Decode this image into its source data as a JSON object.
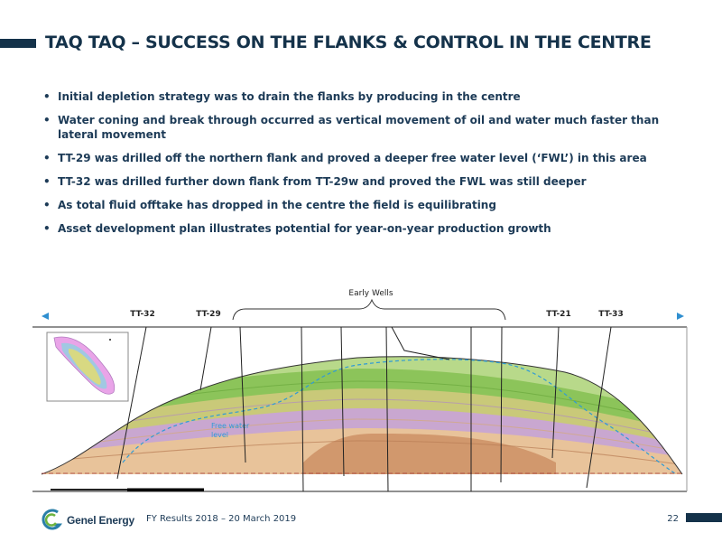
{
  "slide": {
    "title": "TAQ TAQ – SUCCESS ON THE FLANKS & CONTROL IN THE CENTRE",
    "bullets": [
      "Initial depletion strategy was to drain the flanks by producing in the centre",
      "Water coning and break through occurred as vertical movement of oil and water much faster than lateral movement",
      "TT-29 was drilled off the northern flank and proved a deeper free water level (‘FWL’) in this area",
      "TT-32 was drilled further down flank from TT-29w and proved the FWL was still deeper",
      "As total fluid offtake has dropped in the centre the field is equilibrating",
      "Asset development plan illustrates potential for year-on-year production growth"
    ]
  },
  "figure": {
    "early_wells_label": "Early Wells",
    "wells": [
      "TT-32",
      "TT-29",
      "TT-21",
      "TT-33"
    ],
    "free_water_label_line1": "Free water",
    "free_water_label_line2": "level",
    "colors": {
      "green_light": "#b8d98a",
      "green": "#8cc45a",
      "olive": "#c9c979",
      "purple": "#c9a7d0",
      "tan": "#e8c39a",
      "brown": "#c98a5e",
      "fwl_line": "#2f9bd6",
      "arrow": "#2f8fd0"
    }
  },
  "footer": {
    "company": "Genel Energy",
    "event": "FY Results 2018 – 20 March 2019",
    "page": "22"
  }
}
